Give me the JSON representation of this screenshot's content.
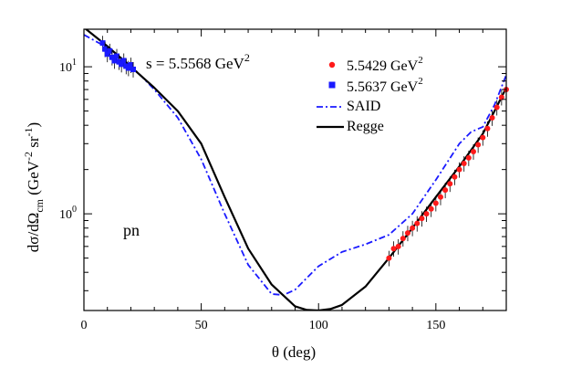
{
  "chart_data": {
    "type": "scatter",
    "title": "",
    "annotations": {
      "energy_label": "s = 5.5568 GeV",
      "energy_sup": "2",
      "reaction": "pn"
    },
    "xlabel": "θ (deg)",
    "ylabel": {
      "main": "dσ/dΩ",
      "sub": "cm",
      "units_open": " (GeV",
      "sup1": "-2",
      "units_mid": " sr",
      "sup2": "-1",
      "units_close": ")"
    },
    "xlim": [
      0,
      180
    ],
    "ylim": [
      0.22,
      18
    ],
    "yscale": "log",
    "grid": false,
    "legend": {
      "placement": "top-right"
    },
    "x_ticks": [
      {
        "value": 0,
        "label": "0"
      },
      {
        "value": 50,
        "label": "50"
      },
      {
        "value": 100,
        "label": "100"
      },
      {
        "value": 150,
        "label": "150"
      }
    ],
    "y_ticks": [
      {
        "value": 1,
        "base": "10",
        "exp": "0"
      },
      {
        "value": 10,
        "base": "10",
        "exp": "1"
      }
    ],
    "series": [
      {
        "name": "5.5429 GeV",
        "name_sup": "2",
        "kind": "points",
        "marker": "circle",
        "color": "#ff1a1a",
        "x": [
          130,
          132,
          134,
          136,
          138,
          140,
          142,
          144,
          146,
          148,
          150,
          152,
          154,
          156,
          158,
          160,
          162,
          164,
          166,
          168,
          170,
          172,
          174,
          176,
          178,
          180
        ],
        "y": [
          0.5,
          0.58,
          0.6,
          0.68,
          0.74,
          0.8,
          0.86,
          0.93,
          1.0,
          1.08,
          1.18,
          1.3,
          1.45,
          1.6,
          1.78,
          2.0,
          2.2,
          2.4,
          2.65,
          2.95,
          3.3,
          3.8,
          4.5,
          5.3,
          6.2,
          7.0
        ]
      },
      {
        "name": "5.5637 GeV",
        "name_sup": "2",
        "kind": "points",
        "marker": "square",
        "color": "#1a1aff",
        "x": [
          8,
          9,
          10,
          11,
          12,
          13,
          14,
          15,
          16,
          17,
          18,
          19,
          20,
          21
        ],
        "y": [
          14.5,
          13.2,
          12.2,
          12.8,
          11.6,
          11.0,
          11.8,
          10.8,
          10.4,
          11.0,
          10.1,
          9.8,
          10.3,
          9.6
        ]
      },
      {
        "name": "SAID",
        "kind": "line",
        "dash": "dashdot",
        "color": "#1a1aff",
        "x": [
          0,
          10,
          20,
          30,
          40,
          50,
          60,
          70,
          80,
          85,
          90,
          100,
          110,
          120,
          130,
          140,
          150,
          160,
          165,
          170,
          175,
          180
        ],
        "y": [
          16.5,
          13.5,
          10.2,
          7.0,
          4.5,
          2.35,
          1.0,
          0.45,
          0.285,
          0.28,
          0.305,
          0.44,
          0.55,
          0.62,
          0.72,
          1.0,
          1.7,
          3.0,
          3.6,
          3.9,
          5.5,
          8.8
        ]
      },
      {
        "name": "Regge",
        "kind": "line",
        "dash": "solid",
        "color": "#000000",
        "x": [
          0,
          10,
          20,
          30,
          40,
          50,
          60,
          70,
          80,
          90,
          95,
          100,
          105,
          110,
          120,
          130,
          140,
          150,
          160,
          170,
          175,
          180
        ],
        "y": [
          18.5,
          13.8,
          10.0,
          7.2,
          5.0,
          3.0,
          1.3,
          0.58,
          0.33,
          0.235,
          0.222,
          0.22,
          0.225,
          0.24,
          0.32,
          0.5,
          0.8,
          1.3,
          2.1,
          3.5,
          5.0,
          7.2
        ]
      }
    ]
  }
}
